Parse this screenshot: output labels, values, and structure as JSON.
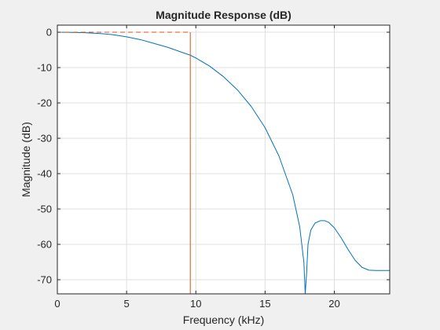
{
  "chart_data": {
    "type": "line",
    "title": "Magnitude Response (dB)",
    "xlabel": "Frequency (kHz)",
    "ylabel": "Magnitude (dB)",
    "xlim": [
      0,
      24
    ],
    "ylim": [
      -74,
      2
    ],
    "xticks": [
      0,
      5,
      10,
      15,
      20
    ],
    "yticks": [
      0,
      -10,
      -20,
      -30,
      -40,
      -50,
      -60,
      -70
    ],
    "grid": true,
    "colors": {
      "response": "#0072bd",
      "mask": "#d95319",
      "grid": "#dfdfdf",
      "axes_bg": "#ffffff",
      "figure_bg": "#f0f0f0"
    },
    "series": [
      {
        "style": "solid",
        "color": "#0072bd",
        "x": [
          0,
          1,
          2,
          3,
          4,
          5,
          6,
          7,
          8,
          9,
          9.6,
          10,
          11,
          12,
          13,
          14,
          15,
          16,
          17,
          17.5,
          17.8,
          17.9,
          18.0,
          18.1,
          18.3,
          18.6,
          19.0,
          19.3,
          19.6,
          20.0,
          20.5,
          21.0,
          21.5,
          22.0,
          22.5,
          23.0,
          24.0
        ],
        "y": [
          0,
          -0.05,
          -0.15,
          -0.35,
          -0.7,
          -1.3,
          -2.1,
          -3.2,
          -4.3,
          -5.7,
          -6.5,
          -7.3,
          -9.6,
          -12.6,
          -16.3,
          -21.0,
          -27.0,
          -35.0,
          -46.0,
          -55.0,
          -65.0,
          -74.0,
          -68.0,
          -60.0,
          -56.0,
          -54.0,
          -53.3,
          -53.3,
          -53.8,
          -55.3,
          -58.2,
          -61.5,
          -64.5,
          -66.5,
          -67.3,
          -67.4,
          -67.4
        ]
      },
      {
        "style": "dashed",
        "color": "#d95319",
        "x": [
          0,
          9.6
        ],
        "y": [
          0,
          0
        ]
      },
      {
        "style": "solid",
        "color": "#d95319",
        "x": [
          9.6,
          9.6
        ],
        "y": [
          0,
          -74
        ]
      }
    ]
  }
}
